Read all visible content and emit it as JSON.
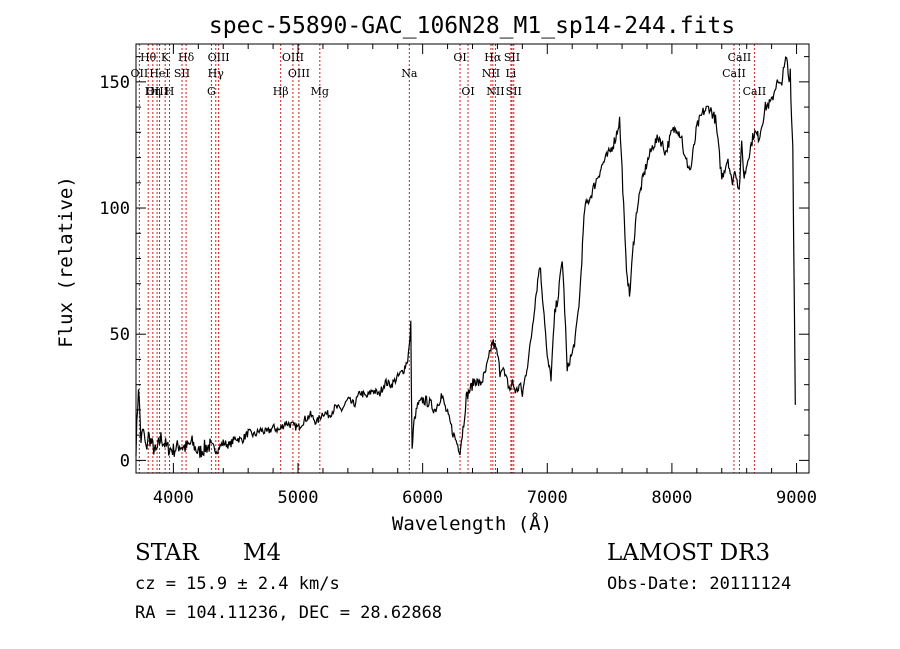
{
  "chart_data": {
    "type": "line",
    "title": "spec-55890-GAC_106N28_M1_sp14-244.fits",
    "xlabel": "Wavelength (Å)",
    "ylabel": "Flux (relative)",
    "xlim": [
      3700,
      9100
    ],
    "ylim": [
      -5,
      165
    ],
    "xticks": [
      4000,
      5000,
      6000,
      7000,
      8000,
      9000
    ],
    "yticks": [
      0,
      50,
      100,
      150
    ],
    "grid": false,
    "series": [
      {
        "name": "spectrum",
        "x": [
          3700,
          3720,
          3740,
          3760,
          3780,
          3800,
          3830,
          3860,
          3900,
          3950,
          4000,
          4050,
          4100,
          4150,
          4200,
          4250,
          4300,
          4350,
          4400,
          4450,
          4500,
          4550,
          4600,
          4650,
          4700,
          4750,
          4800,
          4850,
          4900,
          4950,
          5000,
          5050,
          5100,
          5150,
          5200,
          5250,
          5300,
          5350,
          5400,
          5450,
          5500,
          5550,
          5600,
          5650,
          5700,
          5750,
          5800,
          5850,
          5880,
          5895,
          5905,
          5915,
          5930,
          5960,
          6000,
          6050,
          6100,
          6150,
          6200,
          6250,
          6300,
          6330,
          6350,
          6380,
          6420,
          6460,
          6500,
          6530,
          6560,
          6580,
          6600,
          6620,
          6640,
          6660,
          6680,
          6700,
          6720,
          6750,
          6780,
          6800,
          6830,
          6860,
          6900,
          6940,
          6980,
          7000,
          7030,
          7060,
          7090,
          7120,
          7140,
          7160,
          7180,
          7200,
          7230,
          7260,
          7300,
          7350,
          7400,
          7450,
          7500,
          7550,
          7580,
          7600,
          7630,
          7660,
          7690,
          7720,
          7760,
          7800,
          7850,
          7900,
          7950,
          8000,
          8040,
          8080,
          8100,
          8150,
          8200,
          8250,
          8300,
          8350,
          8400,
          8450,
          8480,
          8510,
          8540,
          8560,
          8580,
          8620,
          8660,
          8700,
          8750,
          8800,
          8840,
          8870,
          8900,
          8920,
          8940,
          8950,
          8960,
          8970,
          8990
        ],
        "values": [
          5,
          30,
          8,
          12,
          4,
          10,
          6,
          3,
          9,
          5,
          4,
          6,
          5,
          7,
          3,
          5,
          6,
          4,
          7,
          6,
          9,
          8,
          11,
          10,
          12,
          11,
          13,
          12,
          15,
          14,
          13,
          16,
          18,
          15,
          19,
          18,
          21,
          20,
          24,
          22,
          27,
          25,
          28,
          26,
          31,
          30,
          33,
          36,
          40,
          46,
          54,
          4,
          15,
          22,
          24,
          23,
          20,
          26,
          18,
          10,
          4,
          15,
          25,
          28,
          32,
          30,
          34,
          40,
          47,
          45,
          42,
          35,
          38,
          33,
          31,
          28,
          31,
          27,
          30,
          26,
          35,
          44,
          62,
          78,
          55,
          40,
          33,
          58,
          66,
          80,
          60,
          35,
          40,
          42,
          50,
          65,
          100,
          105,
          112,
          118,
          122,
          128,
          135,
          115,
          80,
          65,
          85,
          100,
          110,
          118,
          125,
          128,
          122,
          130,
          132,
          128,
          120,
          115,
          132,
          138,
          140,
          135,
          112,
          120,
          110,
          115,
          107,
          125,
          112,
          122,
          130,
          128,
          140,
          142,
          150,
          148,
          155,
          160,
          150,
          155,
          135,
          125,
          22
        ]
      }
    ],
    "line_groups": [
      {
        "row": 1,
        "labels": [
          "Hθ",
          "K",
          "Hδ",
          "OIII",
          "OIII",
          "OI",
          "Hα",
          "SII",
          "CaII"
        ],
        "x": [
          3798,
          3934,
          4102,
          4363,
          4959,
          6300,
          6563,
          6717,
          8542
        ]
      },
      {
        "row": 2,
        "labels": [
          "OII",
          "HeI",
          "SII",
          "Hγ",
          "OIII",
          "Na",
          "NII",
          "Li",
          "CaII"
        ],
        "x": [
          3727,
          3889,
          4069,
          4340,
          5007,
          5893,
          6548,
          6708,
          8498
        ]
      },
      {
        "row": 3,
        "labels": [
          "OIII",
          "Hη",
          "H",
          "G",
          "Hβ",
          "Mg",
          "OI",
          "NII",
          "SII",
          "CaII"
        ],
        "x": [
          3869,
          3835,
          3969,
          4305,
          4861,
          5175,
          6364,
          6584,
          6731,
          8662
        ]
      }
    ]
  },
  "info": {
    "object_class": "STAR",
    "subclass": "M4",
    "survey": "LAMOST DR3",
    "cz": "cz = 15.9 ± 2.4 km/s",
    "obs_date": "Obs-Date: 20111124",
    "coords": "RA = 104.11236, DEC =  28.62868"
  },
  "colors": {
    "line": "#000000",
    "marker": "#cc2222",
    "axes": "#000000"
  }
}
